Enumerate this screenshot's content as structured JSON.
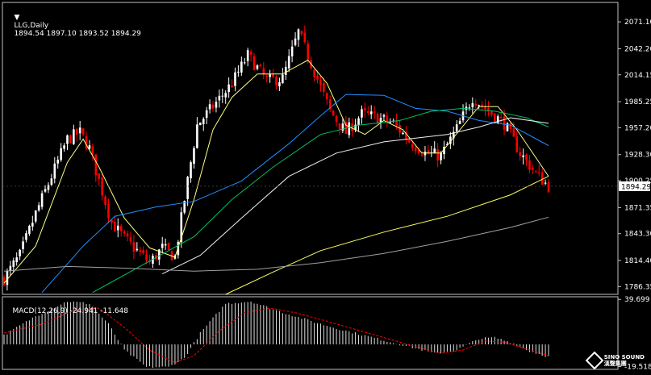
{
  "header": {
    "symbol": "LLG,Daily",
    "ohlc": "1894.54 1897.10 1893.52 1894.29",
    "macd_label": "MACD(12,26,9) -24.941 -11.648"
  },
  "current_price": "1894.29",
  "logo": {
    "text": "SINO SOUND",
    "subtitle": "漢聲集團"
  },
  "colors": {
    "background": "#000000",
    "bull": "#ffffff",
    "bear": "#ff0000",
    "ma_fast": "#ffff80",
    "ma_blue": "#1e90ff",
    "ma_green": "#00c060",
    "ma_white": "#f0f0f0",
    "ma_yellow_long": "#ffff60",
    "ma_grey": "#a0a0a0",
    "macd_hist": "#e0e0e0",
    "macd_signal": "#ff0000",
    "grid_border": "#c0c0c0"
  },
  "chart_data": [
    {
      "type": "candlestick",
      "title": "LLG,Daily",
      "ylim": [
        1778.0,
        2092.0
      ],
      "y_ticks": [
        "2071.10",
        "2042.20",
        "2014.15",
        "1985.25",
        "1957.20",
        "1928.30",
        "1900.25",
        "1871.35",
        "1843.30",
        "1814.40",
        "1786.35"
      ],
      "y_tick_values": [
        2071.1,
        2042.2,
        2014.15,
        1985.25,
        1957.2,
        1928.3,
        1900.25,
        1871.35,
        1843.3,
        1814.4,
        1786.35
      ],
      "current": 1894.29,
      "anchors": [
        [
          0,
          1795
        ],
        [
          5,
          1820
        ],
        [
          10,
          1865
        ],
        [
          15,
          1905
        ],
        [
          20,
          1945
        ],
        [
          24,
          1952
        ],
        [
          27,
          1935
        ],
        [
          30,
          1900
        ],
        [
          34,
          1855
        ],
        [
          38,
          1838
        ],
        [
          42,
          1825
        ],
        [
          46,
          1812
        ],
        [
          50,
          1828
        ],
        [
          54,
          1818
        ],
        [
          57,
          1880
        ],
        [
          61,
          1960
        ],
        [
          66,
          1980
        ],
        [
          72,
          2005
        ],
        [
          77,
          2035
        ],
        [
          83,
          2008
        ],
        [
          88,
          2010
        ],
        [
          93,
          2060
        ],
        [
          98,
          2018
        ],
        [
          103,
          1975
        ],
        [
          108,
          1952
        ],
        [
          113,
          1972
        ],
        [
          118,
          1968
        ],
        [
          123,
          1962
        ],
        [
          128,
          1943
        ],
        [
          133,
          1930
        ],
        [
          138,
          1927
        ],
        [
          143,
          1956
        ],
        [
          148,
          1990
        ],
        [
          153,
          1975
        ],
        [
          158,
          1962
        ],
        [
          163,
          1930
        ],
        [
          168,
          1908
        ],
        [
          172,
          1894
        ]
      ],
      "ma_lines": [
        {
          "key": "ma_fast",
          "pts": [
            [
              0,
              1790
            ],
            [
              10,
              1830
            ],
            [
              20,
              1920
            ],
            [
              25,
              1945
            ],
            [
              30,
              1915
            ],
            [
              38,
              1860
            ],
            [
              46,
              1828
            ],
            [
              54,
              1818
            ],
            [
              60,
              1880
            ],
            [
              66,
              1955
            ],
            [
              72,
              1990
            ],
            [
              80,
              2015
            ],
            [
              88,
              2015
            ],
            [
              96,
              2030
            ],
            [
              102,
              2005
            ],
            [
              108,
              1960
            ],
            [
              114,
              1950
            ],
            [
              120,
              1965
            ],
            [
              126,
              1955
            ],
            [
              132,
              1930
            ],
            [
              138,
              1930
            ],
            [
              144,
              1955
            ],
            [
              150,
              1980
            ],
            [
              156,
              1980
            ],
            [
              162,
              1955
            ],
            [
              168,
              1925
            ],
            [
              172,
              1905
            ]
          ]
        },
        {
          "key": "ma_blue",
          "pts": [
            [
              12,
              1780
            ],
            [
              25,
              1830
            ],
            [
              35,
              1862
            ],
            [
              48,
              1872
            ],
            [
              60,
              1878
            ],
            [
              75,
              1900
            ],
            [
              90,
              1940
            ],
            [
              100,
              1970
            ],
            [
              108,
              1993
            ],
            [
              120,
              1992
            ],
            [
              130,
              1978
            ],
            [
              140,
              1975
            ],
            [
              150,
              1965
            ],
            [
              160,
              1960
            ],
            [
              172,
              1938
            ]
          ]
        },
        {
          "key": "ma_green",
          "pts": [
            [
              28,
              1780
            ],
            [
              45,
              1812
            ],
            [
              60,
              1840
            ],
            [
              72,
              1880
            ],
            [
              85,
              1915
            ],
            [
              100,
              1950
            ],
            [
              112,
              1960
            ],
            [
              125,
              1965
            ],
            [
              135,
              1975
            ],
            [
              145,
              1978
            ],
            [
              155,
              1975
            ],
            [
              165,
              1968
            ],
            [
              172,
              1958
            ]
          ]
        },
        {
          "key": "ma_white",
          "pts": [
            [
              50,
              1800
            ],
            [
              62,
              1820
            ],
            [
              75,
              1860
            ],
            [
              90,
              1905
            ],
            [
              105,
              1930
            ],
            [
              120,
              1942
            ],
            [
              140,
              1950
            ],
            [
              150,
              1958
            ],
            [
              160,
              1968
            ],
            [
              172,
              1962
            ]
          ]
        },
        {
          "key": "ma_yellow_long",
          "pts": [
            [
              70,
              1778
            ],
            [
              85,
              1802
            ],
            [
              100,
              1825
            ],
            [
              120,
              1845
            ],
            [
              140,
              1862
            ],
            [
              160,
              1885
            ],
            [
              172,
              1905
            ]
          ]
        },
        {
          "key": "ma_grey",
          "pts": [
            [
              0,
              1803
            ],
            [
              20,
              1808
            ],
            [
              40,
              1806
            ],
            [
              60,
              1803
            ],
            [
              80,
              1805
            ],
            [
              100,
              1812
            ],
            [
              120,
              1822
            ],
            [
              140,
              1835
            ],
            [
              160,
              1850
            ],
            [
              172,
              1861
            ]
          ]
        }
      ]
    },
    {
      "type": "bar",
      "title": "MACD(12,26,9) -24.941 -11.648",
      "ylim": [
        -22,
        42
      ],
      "y_ticks": [
        "39.699",
        "-19.518"
      ],
      "y_tick_values": [
        39.699,
        -19.518
      ],
      "hist_anchors": [
        [
          0,
          8
        ],
        [
          10,
          25
        ],
        [
          20,
          38
        ],
        [
          27,
          36
        ],
        [
          33,
          18
        ],
        [
          38,
          -5
        ],
        [
          45,
          -20
        ],
        [
          52,
          -20
        ],
        [
          57,
          -12
        ],
        [
          62,
          10
        ],
        [
          70,
          36
        ],
        [
          78,
          38
        ],
        [
          86,
          30
        ],
        [
          93,
          24
        ],
        [
          100,
          18
        ],
        [
          108,
          12
        ],
        [
          118,
          5
        ],
        [
          128,
          -2
        ],
        [
          136,
          -8
        ],
        [
          143,
          -5
        ],
        [
          150,
          5
        ],
        [
          155,
          6
        ],
        [
          160,
          2
        ],
        [
          166,
          -6
        ],
        [
          172,
          -11
        ]
      ],
      "signal_anchors": [
        [
          0,
          10
        ],
        [
          12,
          18
        ],
        [
          22,
          30
        ],
        [
          30,
          32
        ],
        [
          38,
          15
        ],
        [
          46,
          -5
        ],
        [
          54,
          -16
        ],
        [
          60,
          -10
        ],
        [
          68,
          12
        ],
        [
          76,
          28
        ],
        [
          84,
          32
        ],
        [
          92,
          28
        ],
        [
          100,
          22
        ],
        [
          110,
          14
        ],
        [
          120,
          6
        ],
        [
          130,
          -2
        ],
        [
          138,
          -8
        ],
        [
          145,
          -5
        ],
        [
          152,
          3
        ],
        [
          158,
          2
        ],
        [
          165,
          -4
        ],
        [
          172,
          -10
        ]
      ]
    }
  ]
}
